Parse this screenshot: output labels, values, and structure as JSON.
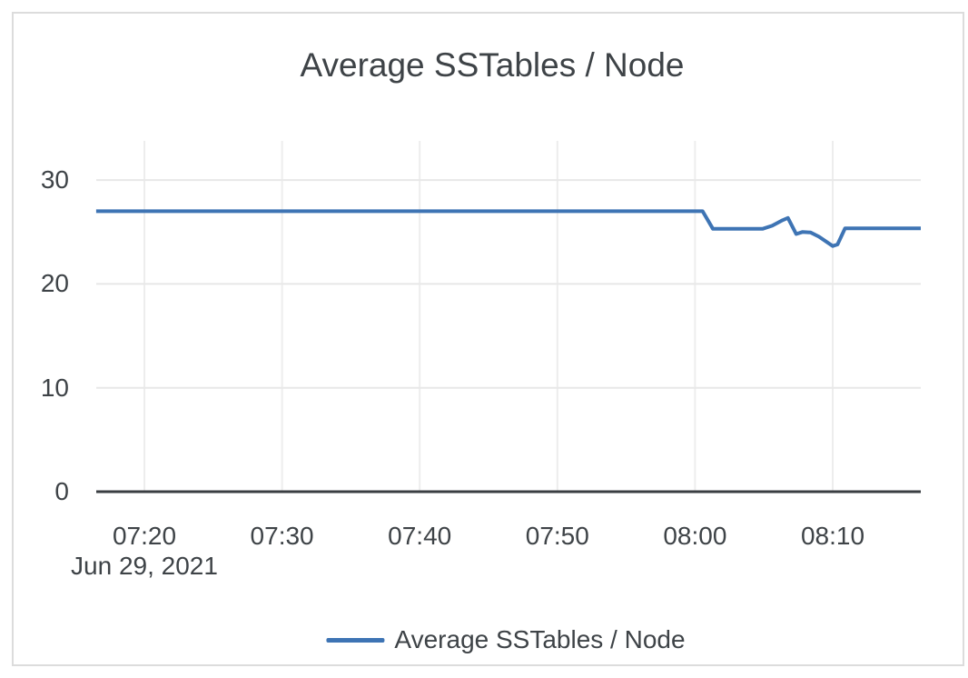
{
  "colors": {
    "line": "#3e74b4",
    "text": "#3e4347",
    "grid_horizontal": "#e8e8e8",
    "grid_vertical": "#ededed",
    "axis": "#3a3e42",
    "card_border": "#dcdcdc",
    "background": "#ffffff"
  },
  "chart_data": {
    "type": "line",
    "title": "Average SSTables / Node",
    "x_axis": {
      "date_label": "Jun 29, 2021",
      "ticks": [
        {
          "minute": 20,
          "label": "07:20"
        },
        {
          "minute": 30,
          "label": "07:30"
        },
        {
          "minute": 40,
          "label": "07:40"
        },
        {
          "minute": 50,
          "label": "07:50"
        },
        {
          "minute": 60,
          "label": "08:00"
        },
        {
          "minute": 70,
          "label": "08:10"
        }
      ],
      "range_minutes_after_0700": [
        16.5,
        76.4
      ],
      "grid": true
    },
    "y_axis": {
      "ticks": [
        {
          "value": 0,
          "label": "0"
        },
        {
          "value": 10,
          "label": "10"
        },
        {
          "value": 20,
          "label": "20"
        },
        {
          "value": 30,
          "label": "30"
        }
      ],
      "range": [
        0,
        33.8
      ],
      "grid": true
    },
    "series": [
      {
        "name": "Average SSTables / Node",
        "color": "#3e74b4",
        "points_minute_value": [
          [
            16.5,
            27.0
          ],
          [
            60.55,
            27.0
          ],
          [
            61.3,
            25.3
          ],
          [
            64.9,
            25.3
          ],
          [
            65.6,
            25.6
          ],
          [
            66.3,
            26.1
          ],
          [
            66.75,
            26.35
          ],
          [
            67.35,
            24.8
          ],
          [
            67.8,
            25.0
          ],
          [
            68.4,
            24.95
          ],
          [
            69.0,
            24.55
          ],
          [
            70.0,
            23.65
          ],
          [
            70.35,
            23.8
          ],
          [
            70.9,
            25.35
          ],
          [
            76.4,
            25.35
          ]
        ]
      }
    ],
    "legend": {
      "position": "bottom-center",
      "label": "Average SSTables / Node"
    }
  }
}
